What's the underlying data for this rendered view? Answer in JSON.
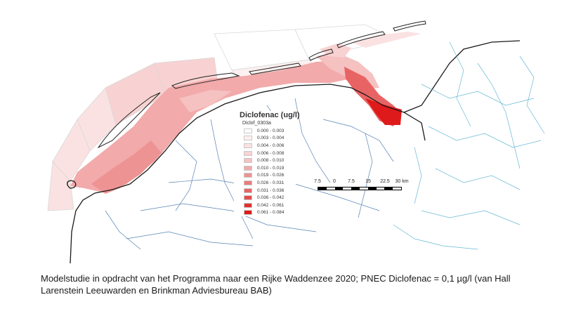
{
  "legend": {
    "title": "Diclofenac (ug/l)",
    "layer": "Diclof_0303a",
    "classes": [
      {
        "range": "0.000 - 0.003",
        "color": "#ffffff"
      },
      {
        "range": "0.003 - 0.004",
        "color": "#fdf0f0"
      },
      {
        "range": "0.004 - 0.006",
        "color": "#fbe2e2"
      },
      {
        "range": "0.006 - 0.008",
        "color": "#f8d2d2"
      },
      {
        "range": "0.008 - 0.010",
        "color": "#f5c1c1"
      },
      {
        "range": "0.010 - 0.019",
        "color": "#f2aaaa"
      },
      {
        "range": "0.019 - 0.026",
        "color": "#ee9393"
      },
      {
        "range": "0.026 - 0.031",
        "color": "#eb7c7c"
      },
      {
        "range": "0.031 - 0.036",
        "color": "#e86464"
      },
      {
        "range": "0.036 - 0.042",
        "color": "#e54b4b"
      },
      {
        "range": "0.042 - 0.061",
        "color": "#e23030"
      },
      {
        "range": "0.061 - 0.084",
        "color": "#df1a1a"
      }
    ]
  },
  "scale_bar": {
    "ticks": [
      "7.5",
      "0",
      "7.5",
      "15",
      "22.5",
      "30 km"
    ]
  },
  "caption": "Modelstudie in opdracht van het Programma naar een Rijke Waddenzee 2020; PNEC Diclofenac = 0,1 µg/l (van Hall Larenstein Leeuwarden en Brinkman Adviesbureau BAB)"
}
